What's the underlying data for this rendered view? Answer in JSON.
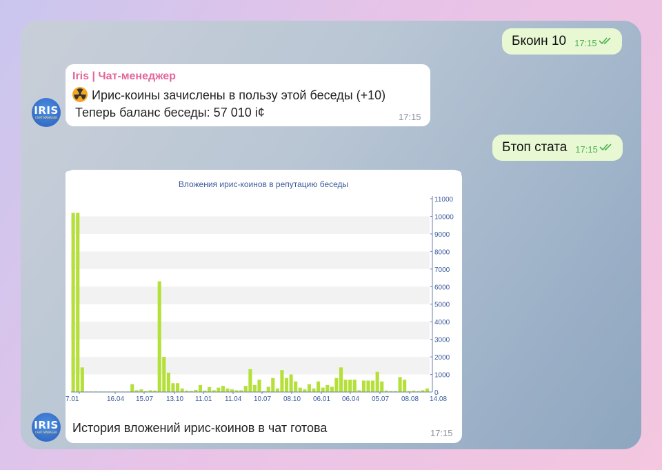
{
  "messages": {
    "out1": {
      "text": "Бкоин 10",
      "time": "17:15"
    },
    "in1": {
      "sender": "Iris | Чат-менеджер",
      "line1": "Ирис-коины зачислены в пользу этой беседы (+10)",
      "line2": "Теперь баланс беседы: 57 010 i¢",
      "time": "17:15"
    },
    "out2": {
      "text": "Бтоп стата",
      "time": "17:15"
    },
    "in2": {
      "caption": "История вложений ирис-коинов в чат готова",
      "time": "17:15"
    }
  },
  "avatar": {
    "label": "IRIS",
    "sub": "CHAT MANAGER"
  },
  "icons": {
    "radiation": "radiation-icon",
    "read": "double-check-icon"
  },
  "colors": {
    "out_bubble": "#e7f8d3",
    "sender": "#e3669b",
    "bar": "#b5e03a",
    "axis_text": "#3a5a9a"
  },
  "chart_data": {
    "type": "bar",
    "title": "Вложения ирис-коинов в репутацию беседы",
    "ylim": [
      0,
      11000
    ],
    "y_ticks": [
      0,
      1000,
      2000,
      3000,
      4000,
      5000,
      6000,
      7000,
      8000,
      9000,
      10000,
      11000
    ],
    "x_tick_labels": [
      "7.01",
      "16.04",
      "15.07",
      "13.10",
      "11.01",
      "11.04",
      "10.07",
      "08.10",
      "06.01",
      "06.04",
      "05.07",
      "08.08",
      "14.08"
    ],
    "grid": "horizontal bands",
    "values": [
      10200,
      10200,
      1400,
      30,
      30,
      30,
      30,
      30,
      30,
      30,
      30,
      30,
      30,
      450,
      100,
      150,
      50,
      100,
      80,
      6300,
      2000,
      1100,
      500,
      500,
      200,
      80,
      60,
      120,
      400,
      80,
      280,
      100,
      250,
      350,
      200,
      150,
      100,
      100,
      350,
      1300,
      400,
      700,
      50,
      300,
      800,
      200,
      1250,
      800,
      1000,
      600,
      250,
      150,
      450,
      200,
      600,
      250,
      400,
      300,
      800,
      1400,
      700,
      700,
      700,
      100,
      650,
      650,
      650,
      1150,
      600,
      80,
      50,
      50,
      850,
      700,
      50,
      80,
      50,
      100,
      200
    ]
  }
}
